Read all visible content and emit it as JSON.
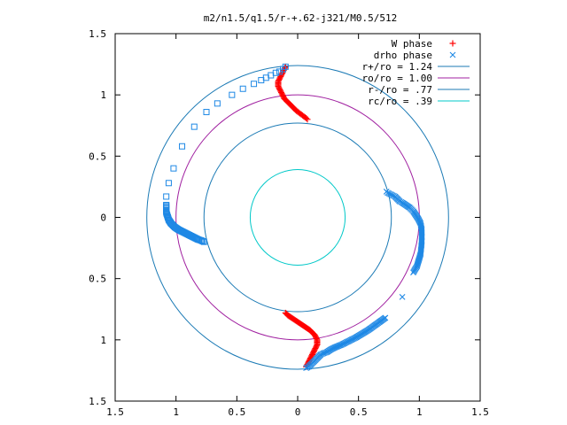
{
  "chart_data": {
    "type": "scatter",
    "title": "m2/n1.5/q1.5/r-+.62-j321/M0.5/512",
    "xlim": [
      -1.5,
      1.5
    ],
    "ylim": [
      -1.5,
      1.5
    ],
    "x_ticks": [
      -1.5,
      -1,
      -0.5,
      0,
      0.5,
      1,
      1.5
    ],
    "x_tick_labels": [
      "1.5",
      "1",
      "0.5",
      "0",
      "0.5",
      "1",
      "1.5"
    ],
    "y_ticks": [
      1.5,
      1,
      0.5,
      0,
      -0.5,
      -1,
      -1.5
    ],
    "y_tick_labels": [
      "1.5",
      "1",
      "0.5",
      "0",
      "0.5",
      "1",
      "1.5"
    ],
    "grid": false,
    "legend_position": "top-right",
    "circles": [
      {
        "name": "r+/ro = 1.24",
        "r": 1.24,
        "color": "#1b7ab5"
      },
      {
        "name": "ro/ro = 1.00",
        "r": 1.0,
        "color": "#a020a0"
      },
      {
        "name": "r-/ro = .77",
        "r": 0.77,
        "color": "#1b7ab5"
      },
      {
        "name": "rc/ro = .39",
        "r": 0.39,
        "color": "#00c8c8"
      }
    ],
    "series": [
      {
        "name": "W phase",
        "marker": "plus",
        "color": "#ff0000",
        "points": [
          [
            -0.1,
            1.23
          ],
          [
            -0.11,
            1.21
          ],
          [
            -0.12,
            1.19
          ],
          [
            -0.13,
            1.17
          ],
          [
            -0.14,
            1.15
          ],
          [
            -0.15,
            1.13
          ],
          [
            -0.16,
            1.11
          ],
          [
            -0.16,
            1.09
          ],
          [
            -0.16,
            1.07
          ],
          [
            -0.15,
            1.05
          ],
          [
            -0.14,
            1.03
          ],
          [
            -0.13,
            1.01
          ],
          [
            -0.12,
            0.99
          ],
          [
            -0.11,
            0.97
          ],
          [
            -0.09,
            0.95
          ],
          [
            -0.07,
            0.93
          ],
          [
            -0.05,
            0.91
          ],
          [
            -0.03,
            0.89
          ],
          [
            -0.01,
            0.87
          ],
          [
            0.01,
            0.855
          ],
          [
            0.03,
            0.84
          ],
          [
            0.05,
            0.825
          ],
          [
            0.07,
            0.81
          ],
          [
            0.08,
            0.8
          ],
          [
            -0.1,
            -0.78
          ],
          [
            -0.08,
            -0.8
          ],
          [
            -0.05,
            -0.82
          ],
          [
            -0.02,
            -0.84
          ],
          [
            0.01,
            -0.86
          ],
          [
            0.04,
            -0.88
          ],
          [
            0.07,
            -0.9
          ],
          [
            0.1,
            -0.92
          ],
          [
            0.12,
            -0.94
          ],
          [
            0.14,
            -0.96
          ],
          [
            0.15,
            -0.98
          ],
          [
            0.16,
            -1.0
          ],
          [
            0.16,
            -1.02
          ],
          [
            0.16,
            -1.04
          ],
          [
            0.15,
            -1.06
          ],
          [
            0.14,
            -1.08
          ],
          [
            0.13,
            -1.1
          ],
          [
            0.12,
            -1.12
          ],
          [
            0.11,
            -1.14
          ],
          [
            0.1,
            -1.16
          ],
          [
            0.09,
            -1.18
          ],
          [
            0.08,
            -1.2
          ],
          [
            0.07,
            -1.22
          ]
        ]
      },
      {
        "name": "drho phase",
        "marker": "cross",
        "color": "#1e88e5",
        "points": [
          [
            0.07,
            -1.23
          ],
          [
            0.09,
            -1.22
          ],
          [
            0.11,
            -1.2
          ],
          [
            0.13,
            -1.18
          ],
          [
            0.15,
            -1.16
          ],
          [
            0.17,
            -1.14
          ],
          [
            0.19,
            -1.12
          ],
          [
            0.21,
            -1.11
          ],
          [
            0.24,
            -1.1
          ],
          [
            0.27,
            -1.08
          ],
          [
            0.31,
            -1.06
          ],
          [
            0.36,
            -1.04
          ],
          [
            0.42,
            -1.01
          ],
          [
            0.48,
            -0.98
          ],
          [
            0.58,
            -0.92
          ],
          [
            0.72,
            -0.82
          ],
          [
            0.86,
            -0.65
          ],
          [
            0.95,
            -0.45
          ],
          [
            0.98,
            -0.4
          ],
          [
            1.01,
            -0.3
          ],
          [
            1.02,
            -0.2
          ],
          [
            1.02,
            -0.1
          ],
          [
            1.01,
            -0.05
          ],
          [
            0.99,
            -0.01
          ],
          [
            0.97,
            0.02
          ],
          [
            0.95,
            0.05
          ],
          [
            0.92,
            0.08
          ],
          [
            0.89,
            0.1
          ],
          [
            0.86,
            0.12
          ],
          [
            0.84,
            0.13
          ],
          [
            0.82,
            0.15
          ],
          [
            0.8,
            0.17
          ],
          [
            0.78,
            0.18
          ],
          [
            0.76,
            0.19
          ],
          [
            0.74,
            0.2
          ],
          [
            0.73,
            0.21
          ]
        ]
      },
      {
        "name": "",
        "marker": "square",
        "color": "#1e88e5",
        "points": [
          [
            -0.1,
            1.23
          ],
          [
            -0.12,
            1.21
          ],
          [
            -0.15,
            1.19
          ],
          [
            -0.18,
            1.18
          ],
          [
            -0.22,
            1.16
          ],
          [
            -0.26,
            1.14
          ],
          [
            -0.3,
            1.12
          ],
          [
            -0.36,
            1.09
          ],
          [
            -0.45,
            1.05
          ],
          [
            -0.54,
            1.0
          ],
          [
            -0.66,
            0.93
          ],
          [
            -0.75,
            0.86
          ],
          [
            -0.85,
            0.74
          ],
          [
            -0.95,
            0.58
          ],
          [
            -1.02,
            0.4
          ],
          [
            -1.06,
            0.28
          ],
          [
            -1.08,
            0.17
          ],
          [
            -1.08,
            0.1
          ],
          [
            -1.08,
            0.04
          ],
          [
            -1.07,
            0.01
          ],
          [
            -1.06,
            -0.02
          ],
          [
            -1.04,
            -0.05
          ],
          [
            -1.01,
            -0.08
          ],
          [
            -0.98,
            -0.1
          ],
          [
            -0.94,
            -0.12
          ],
          [
            -0.9,
            -0.14
          ],
          [
            -0.86,
            -0.16
          ],
          [
            -0.82,
            -0.18
          ],
          [
            -0.79,
            -0.19
          ],
          [
            -0.77,
            -0.2
          ]
        ]
      }
    ]
  }
}
